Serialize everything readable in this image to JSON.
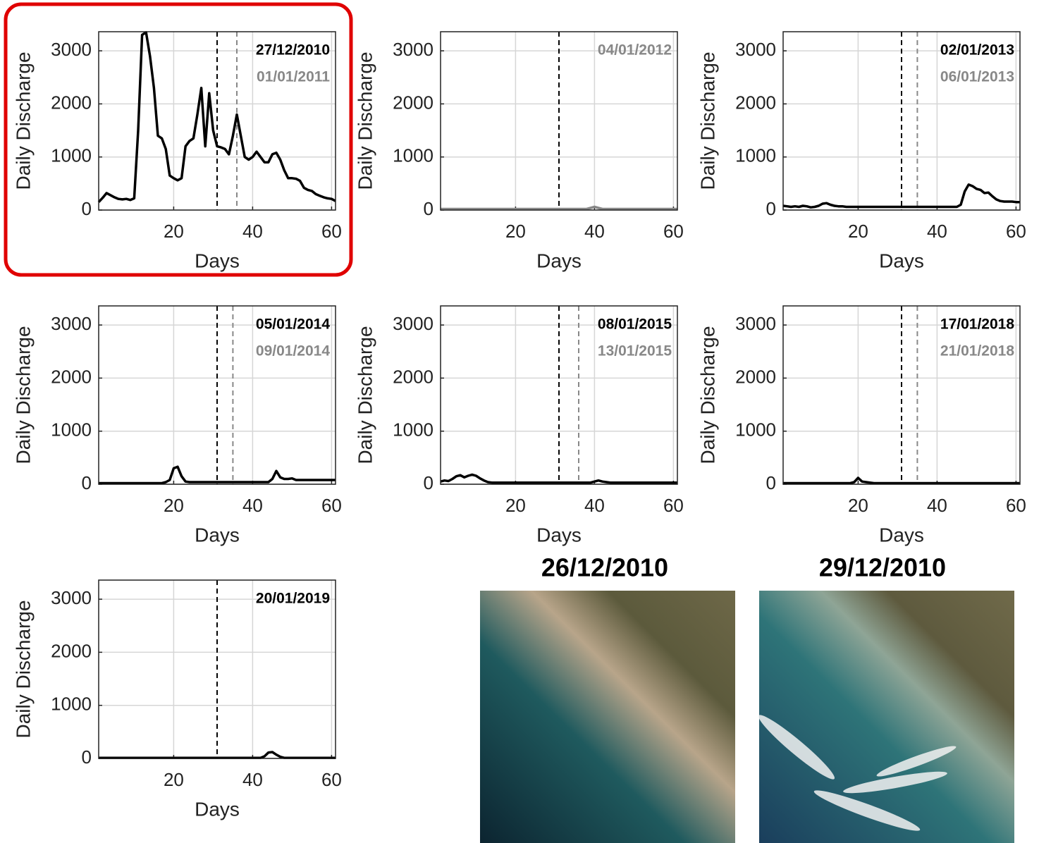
{
  "chart_data": [
    {
      "type": "line",
      "xlabel": "Days",
      "ylabel": "Daily Discharge",
      "color": "#000000",
      "x": [
        1,
        2,
        3,
        4,
        5,
        6,
        7,
        8,
        9,
        10,
        11,
        12,
        13,
        14,
        15,
        16,
        17,
        18,
        19,
        20,
        21,
        22,
        23,
        24,
        25,
        26,
        27,
        28,
        29,
        30,
        31,
        32,
        33,
        34,
        35,
        36,
        37,
        38,
        39,
        40,
        41,
        42,
        43,
        44,
        45,
        46,
        47,
        48,
        49,
        50,
        51,
        52,
        53,
        54,
        55,
        56,
        57,
        58,
        59,
        60,
        61
      ],
      "values": [
        150,
        230,
        320,
        280,
        240,
        210,
        200,
        210,
        190,
        220,
        1500,
        3300,
        3350,
        2900,
        2300,
        1400,
        1350,
        1150,
        650,
        600,
        560,
        600,
        1200,
        1300,
        1350,
        1800,
        2300,
        1200,
        2200,
        1500,
        1200,
        1180,
        1150,
        1050,
        1400,
        1800,
        1400,
        1000,
        950,
        1000,
        1100,
        1000,
        900,
        900,
        1050,
        1080,
        950,
        750,
        600,
        600,
        590,
        550,
        420,
        380,
        360,
        300,
        270,
        240,
        220,
        210,
        170
      ],
      "xlim": [
        1,
        61
      ],
      "ylim": [
        0,
        3360
      ],
      "xticks": [
        20,
        40,
        60
      ],
      "yticks": [
        0,
        1000,
        2000,
        3000
      ],
      "grid": true,
      "vlines": [
        {
          "x": 31,
          "color": "#000000"
        },
        {
          "x": 36,
          "color": "#888888"
        }
      ],
      "annotations": [
        {
          "text": "27/12/2010",
          "color": "#000000"
        },
        {
          "text": "01/01/2011",
          "color": "#888888"
        }
      ]
    },
    {
      "type": "line",
      "xlabel": "Days",
      "ylabel": "Daily Discharge",
      "color": "#888888",
      "x": [
        1,
        2,
        3,
        4,
        5,
        6,
        7,
        8,
        9,
        10,
        11,
        12,
        13,
        14,
        15,
        16,
        17,
        18,
        19,
        20,
        21,
        22,
        23,
        24,
        25,
        26,
        27,
        28,
        29,
        30,
        31,
        32,
        33,
        34,
        35,
        36,
        37,
        38,
        39,
        40,
        41,
        42,
        43,
        44,
        45,
        46,
        47,
        48,
        49,
        50,
        51,
        52,
        53,
        54,
        55,
        56,
        57,
        58,
        59,
        60,
        61
      ],
      "values": [
        20,
        20,
        20,
        20,
        20,
        20,
        20,
        20,
        20,
        20,
        20,
        20,
        20,
        20,
        20,
        20,
        20,
        20,
        20,
        20,
        20,
        20,
        20,
        20,
        20,
        20,
        20,
        20,
        20,
        20,
        20,
        20,
        20,
        20,
        20,
        20,
        20,
        20,
        40,
        60,
        40,
        20,
        20,
        20,
        20,
        20,
        20,
        20,
        20,
        20,
        20,
        20,
        20,
        20,
        20,
        20,
        20,
        20,
        20,
        20,
        20
      ],
      "xlim": [
        1,
        61
      ],
      "ylim": [
        0,
        3360
      ],
      "xticks": [
        20,
        40,
        60
      ],
      "yticks": [
        0,
        1000,
        2000,
        3000
      ],
      "grid": true,
      "vlines": [
        {
          "x": 31,
          "color": "#000000"
        }
      ],
      "annotations": [
        {
          "text": "04/01/2012",
          "color": "#888888"
        }
      ]
    },
    {
      "type": "line",
      "xlabel": "Days",
      "ylabel": "Daily Discharge",
      "color": "#000000",
      "x": [
        1,
        2,
        3,
        4,
        5,
        6,
        7,
        8,
        9,
        10,
        11,
        12,
        13,
        14,
        15,
        16,
        17,
        18,
        19,
        20,
        21,
        22,
        23,
        24,
        25,
        26,
        27,
        28,
        29,
        30,
        31,
        32,
        33,
        34,
        35,
        36,
        37,
        38,
        39,
        40,
        41,
        42,
        43,
        44,
        45,
        46,
        47,
        48,
        49,
        50,
        51,
        52,
        53,
        54,
        55,
        56,
        57,
        58,
        59,
        60,
        61
      ],
      "values": [
        80,
        70,
        60,
        70,
        60,
        80,
        70,
        50,
        60,
        80,
        120,
        130,
        100,
        80,
        70,
        70,
        60,
        60,
        60,
        60,
        60,
        60,
        60,
        60,
        60,
        60,
        60,
        60,
        60,
        60,
        60,
        60,
        60,
        60,
        60,
        60,
        60,
        60,
        60,
        60,
        60,
        60,
        60,
        60,
        60,
        100,
        350,
        480,
        450,
        400,
        380,
        320,
        330,
        260,
        200,
        170,
        160,
        160,
        160,
        150,
        150
      ],
      "xlim": [
        1,
        61
      ],
      "ylim": [
        0,
        3360
      ],
      "xticks": [
        20,
        40,
        60
      ],
      "yticks": [
        0,
        1000,
        2000,
        3000
      ],
      "grid": true,
      "vlines": [
        {
          "x": 31,
          "color": "#000000"
        },
        {
          "x": 35,
          "color": "#888888"
        }
      ],
      "annotations": [
        {
          "text": "02/01/2013",
          "color": "#000000"
        },
        {
          "text": "06/01/2013",
          "color": "#888888"
        }
      ]
    },
    {
      "type": "line",
      "xlabel": "Days",
      "ylabel": "Daily Discharge",
      "color": "#000000",
      "x": [
        1,
        2,
        3,
        4,
        5,
        6,
        7,
        8,
        9,
        10,
        11,
        12,
        13,
        14,
        15,
        16,
        17,
        18,
        19,
        20,
        21,
        22,
        23,
        24,
        25,
        26,
        27,
        28,
        29,
        30,
        31,
        32,
        33,
        34,
        35,
        36,
        37,
        38,
        39,
        40,
        41,
        42,
        43,
        44,
        45,
        46,
        47,
        48,
        49,
        50,
        51,
        52,
        53,
        54,
        55,
        56,
        57,
        58,
        59,
        60,
        61
      ],
      "values": [
        20,
        20,
        20,
        20,
        20,
        20,
        20,
        20,
        20,
        20,
        20,
        20,
        20,
        20,
        20,
        20,
        20,
        40,
        80,
        300,
        330,
        150,
        50,
        40,
        40,
        40,
        40,
        40,
        40,
        40,
        40,
        40,
        40,
        40,
        40,
        40,
        40,
        40,
        40,
        40,
        40,
        40,
        40,
        40,
        100,
        250,
        130,
        100,
        100,
        110,
        80,
        80,
        80,
        80,
        80,
        80,
        80,
        80,
        80,
        80,
        80
      ],
      "xlim": [
        1,
        61
      ],
      "ylim": [
        0,
        3360
      ],
      "xticks": [
        20,
        40,
        60
      ],
      "yticks": [
        0,
        1000,
        2000,
        3000
      ],
      "grid": true,
      "vlines": [
        {
          "x": 31,
          "color": "#000000"
        },
        {
          "x": 35,
          "color": "#888888"
        }
      ],
      "annotations": [
        {
          "text": "05/01/2014",
          "color": "#000000"
        },
        {
          "text": "09/01/2014",
          "color": "#888888"
        }
      ]
    },
    {
      "type": "line",
      "xlabel": "Days",
      "ylabel": "Daily Discharge",
      "color": "#000000",
      "x": [
        1,
        2,
        3,
        4,
        5,
        6,
        7,
        8,
        9,
        10,
        11,
        12,
        13,
        14,
        15,
        16,
        17,
        18,
        19,
        20,
        21,
        22,
        23,
        24,
        25,
        26,
        27,
        28,
        29,
        30,
        31,
        32,
        33,
        34,
        35,
        36,
        37,
        38,
        39,
        40,
        41,
        42,
        43,
        44,
        45,
        46,
        47,
        48,
        49,
        50,
        51,
        52,
        53,
        54,
        55,
        56,
        57,
        58,
        59,
        60,
        61
      ],
      "values": [
        50,
        70,
        60,
        100,
        150,
        170,
        130,
        160,
        180,
        160,
        110,
        70,
        40,
        30,
        30,
        30,
        30,
        30,
        30,
        30,
        30,
        30,
        30,
        30,
        30,
        30,
        30,
        30,
        30,
        30,
        30,
        30,
        30,
        30,
        30,
        30,
        30,
        30,
        30,
        50,
        70,
        50,
        40,
        30,
        30,
        30,
        30,
        30,
        30,
        30,
        30,
        30,
        30,
        30,
        30,
        30,
        30,
        30,
        30,
        30,
        30
      ],
      "xlim": [
        1,
        61
      ],
      "ylim": [
        0,
        3360
      ],
      "xticks": [
        20,
        40,
        60
      ],
      "yticks": [
        0,
        1000,
        2000,
        3000
      ],
      "grid": true,
      "vlines": [
        {
          "x": 31,
          "color": "#000000"
        },
        {
          "x": 36,
          "color": "#888888"
        }
      ],
      "annotations": [
        {
          "text": "08/01/2015",
          "color": "#000000"
        },
        {
          "text": "13/01/2015",
          "color": "#888888"
        }
      ]
    },
    {
      "type": "line",
      "xlabel": "Days",
      "ylabel": "Daily Discharge",
      "color": "#000000",
      "x": [
        1,
        2,
        3,
        4,
        5,
        6,
        7,
        8,
        9,
        10,
        11,
        12,
        13,
        14,
        15,
        16,
        17,
        18,
        19,
        20,
        21,
        22,
        23,
        24,
        25,
        26,
        27,
        28,
        29,
        30,
        31,
        32,
        33,
        34,
        35,
        36,
        37,
        38,
        39,
        40,
        41,
        42,
        43,
        44,
        45,
        46,
        47,
        48,
        49,
        50,
        51,
        52,
        53,
        54,
        55,
        56,
        57,
        58,
        59,
        60,
        61
      ],
      "values": [
        20,
        20,
        20,
        20,
        20,
        20,
        20,
        20,
        20,
        20,
        20,
        20,
        20,
        20,
        20,
        20,
        20,
        20,
        40,
        120,
        50,
        40,
        30,
        20,
        20,
        20,
        20,
        20,
        20,
        20,
        20,
        20,
        20,
        20,
        20,
        20,
        20,
        20,
        20,
        20,
        20,
        20,
        20,
        20,
        20,
        20,
        20,
        20,
        20,
        20,
        20,
        20,
        20,
        20,
        20,
        20,
        20,
        20,
        20,
        20,
        20
      ],
      "xlim": [
        1,
        61
      ],
      "ylim": [
        0,
        3360
      ],
      "xticks": [
        20,
        40,
        60
      ],
      "yticks": [
        0,
        1000,
        2000,
        3000
      ],
      "grid": true,
      "vlines": [
        {
          "x": 31,
          "color": "#000000"
        },
        {
          "x": 35,
          "color": "#888888"
        }
      ],
      "annotations": [
        {
          "text": "17/01/2018",
          "color": "#000000"
        },
        {
          "text": "21/01/2018",
          "color": "#888888"
        }
      ]
    },
    {
      "type": "line",
      "xlabel": "Days",
      "ylabel": "Daily Discharge",
      "color": "#000000",
      "x": [
        1,
        2,
        3,
        4,
        5,
        6,
        7,
        8,
        9,
        10,
        11,
        12,
        13,
        14,
        15,
        16,
        17,
        18,
        19,
        20,
        21,
        22,
        23,
        24,
        25,
        26,
        27,
        28,
        29,
        30,
        31,
        32,
        33,
        34,
        35,
        36,
        37,
        38,
        39,
        40,
        41,
        42,
        43,
        44,
        45,
        46,
        47,
        48,
        49,
        50,
        51,
        52,
        53,
        54,
        55,
        56,
        57,
        58,
        59,
        60,
        61
      ],
      "values": [
        10,
        10,
        10,
        10,
        10,
        10,
        10,
        10,
        10,
        10,
        10,
        10,
        10,
        10,
        10,
        10,
        10,
        10,
        10,
        10,
        10,
        10,
        10,
        10,
        10,
        10,
        10,
        10,
        10,
        10,
        10,
        10,
        10,
        10,
        10,
        10,
        10,
        10,
        10,
        10,
        10,
        10,
        40,
        110,
        120,
        70,
        30,
        10,
        10,
        10,
        10,
        10,
        10,
        10,
        10,
        10,
        10,
        10,
        10,
        10,
        10
      ],
      "xlim": [
        1,
        61
      ],
      "ylim": [
        0,
        3360
      ],
      "xticks": [
        20,
        40,
        60
      ],
      "yticks": [
        0,
        1000,
        2000,
        3000
      ],
      "grid": true,
      "vlines": [
        {
          "x": 31,
          "color": "#000000"
        }
      ],
      "annotations": [
        {
          "text": "20/01/2019",
          "color": "#000000"
        }
      ]
    }
  ],
  "images": [
    {
      "caption": "26/12/2010"
    },
    {
      "caption": "29/12/2010"
    }
  ]
}
